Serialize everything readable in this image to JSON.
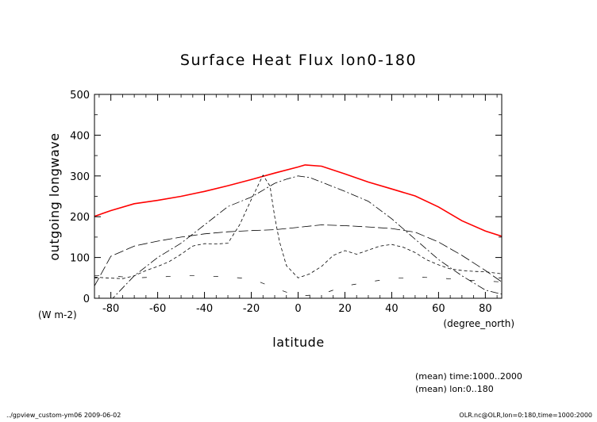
{
  "chart_data": {
    "type": "line",
    "title": "Surface Heat Flux lon0-180",
    "xlabel": "latitude",
    "ylabel": "outgoing longwave",
    "y_units": "(W m-2)",
    "x_units": "(degree_north)",
    "xlim": [
      -87,
      87
    ],
    "ylim": [
      0,
      500
    ],
    "x_ticks": [
      -80,
      -60,
      -40,
      -20,
      0,
      20,
      40,
      60,
      80
    ],
    "y_ticks": [
      0,
      100,
      200,
      300,
      400,
      500
    ],
    "notes": [
      "(mean) time:1000..2000",
      "(mean) lon:0..180"
    ],
    "footer_left": "../gpview_custom-ym06  2009-06-02",
    "footer_right": "OLR.nc@OLR,lon=0:180,time=1000:2000",
    "series": [
      {
        "color": "#ff0000",
        "dash": "solid",
        "width": 1.6,
        "x": [
          -87,
          -80,
          -70,
          -60,
          -50,
          -40,
          -30,
          -20,
          -10,
          0,
          3,
          10,
          20,
          30,
          40,
          50,
          60,
          70,
          80,
          87
        ],
        "y": [
          201,
          215,
          232,
          240,
          250,
          262,
          276,
          291,
          307,
          322,
          327,
          324,
          305,
          285,
          268,
          251,
          224,
          190,
          165,
          152
        ]
      },
      {
        "color": "#000000",
        "dash": "12,4",
        "width": 0.8,
        "x": [
          -87,
          -80,
          -70,
          -60,
          -50,
          -40,
          -30,
          -20,
          -10,
          0,
          10,
          20,
          30,
          40,
          50,
          60,
          70,
          80,
          87
        ],
        "y": [
          30,
          103,
          128,
          140,
          150,
          158,
          163,
          166,
          168,
          174,
          180,
          178,
          175,
          171,
          162,
          138,
          105,
          68,
          40
        ]
      },
      {
        "color": "#000000",
        "dash": "10,3,2,3",
        "width": 0.8,
        "x": [
          -87,
          -80,
          -70,
          -60,
          -50,
          -40,
          -30,
          -20,
          -10,
          -5,
          0,
          5,
          10,
          20,
          30,
          40,
          50,
          60,
          70,
          80,
          87
        ],
        "y": [
          -10,
          -5,
          55,
          100,
          135,
          180,
          225,
          248,
          282,
          292,
          300,
          296,
          285,
          262,
          238,
          195,
          145,
          95,
          55,
          20,
          10
        ]
      },
      {
        "color": "#000000",
        "dash": "4,3",
        "width": 0.8,
        "x": [
          -87,
          -82,
          -75,
          -70,
          -65,
          -60,
          -55,
          -50,
          -45,
          -40,
          -35,
          -30,
          -25,
          -20,
          -15,
          -12,
          -10,
          -8,
          -5,
          0,
          5,
          10,
          15,
          20,
          25,
          30,
          35,
          40,
          45,
          50,
          55,
          60,
          65,
          70,
          75,
          80,
          87
        ],
        "y": [
          52,
          50,
          48,
          55,
          68,
          78,
          90,
          108,
          128,
          134,
          133,
          135,
          180,
          242,
          302,
          275,
          200,
          140,
          80,
          50,
          60,
          78,
          105,
          117,
          108,
          118,
          128,
          132,
          125,
          112,
          94,
          82,
          72,
          68,
          66,
          65,
          60
        ]
      },
      {
        "color": "#000000",
        "dash": "6,24",
        "width": 0.7,
        "x": [
          -87,
          -80,
          -70,
          -60,
          -50,
          -40,
          -30,
          -20,
          -10,
          0,
          10,
          20,
          30,
          40,
          50,
          60,
          70,
          80,
          87
        ],
        "y": [
          55,
          55,
          50,
          52,
          55,
          55,
          52,
          48,
          25,
          5,
          10,
          30,
          40,
          48,
          52,
          50,
          45,
          42,
          40
        ]
      }
    ]
  }
}
